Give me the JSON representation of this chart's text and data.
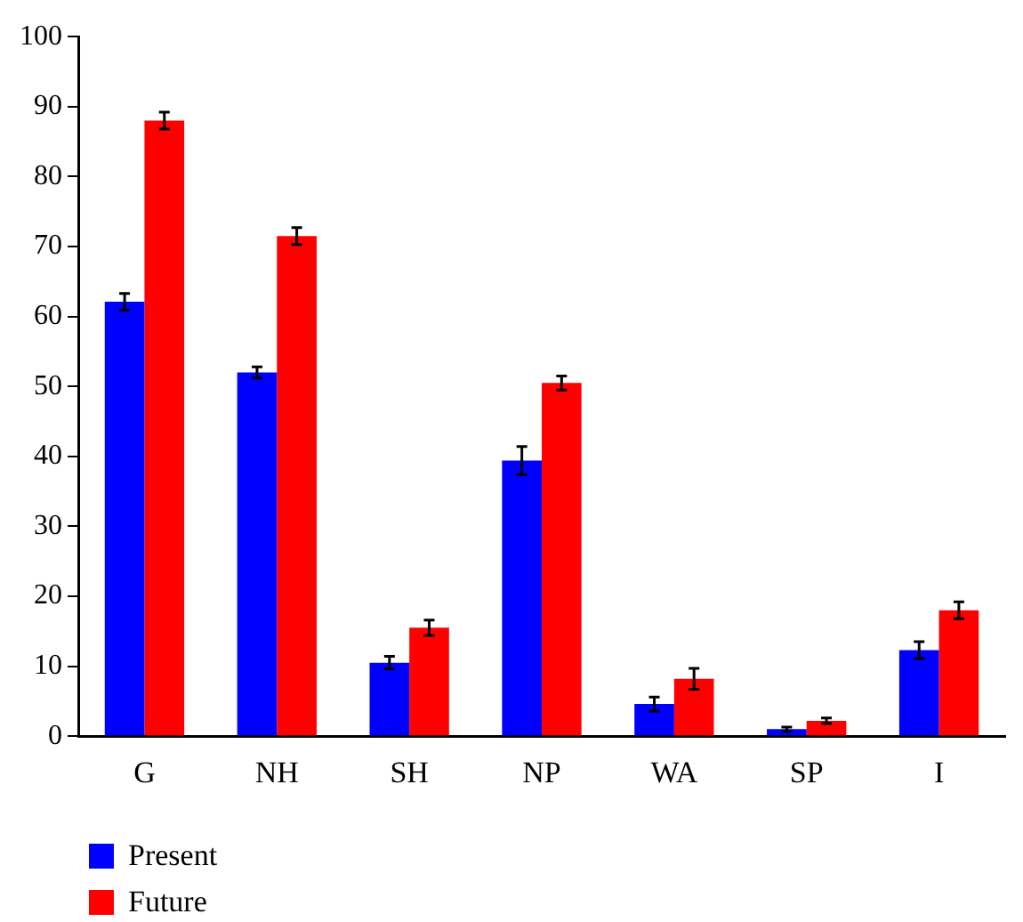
{
  "chart_data": {
    "type": "bar",
    "categories": [
      "G",
      "NH",
      "SH",
      "NP",
      "WA",
      "SP",
      "I"
    ],
    "series": [
      {
        "name": "Present",
        "color": "#0000ff",
        "values": [
          62.1,
          52,
          10.5,
          39.4,
          4.6,
          1,
          12.3
        ],
        "errors": [
          1.2,
          0.8,
          0.9,
          2,
          1,
          0.3,
          1.2
        ]
      },
      {
        "name": "Future",
        "color": "#ff0000",
        "values": [
          88,
          71.5,
          15.5,
          50.5,
          8.2,
          2.2,
          18
        ],
        "errors": [
          1.2,
          1.2,
          1.1,
          1,
          1.5,
          0.4,
          1.2
        ]
      }
    ],
    "ylim": [
      0,
      100
    ],
    "yticks": [
      0,
      10,
      20,
      30,
      40,
      50,
      60,
      70,
      80,
      90,
      100
    ],
    "grid": false,
    "legend": "bottom left"
  }
}
